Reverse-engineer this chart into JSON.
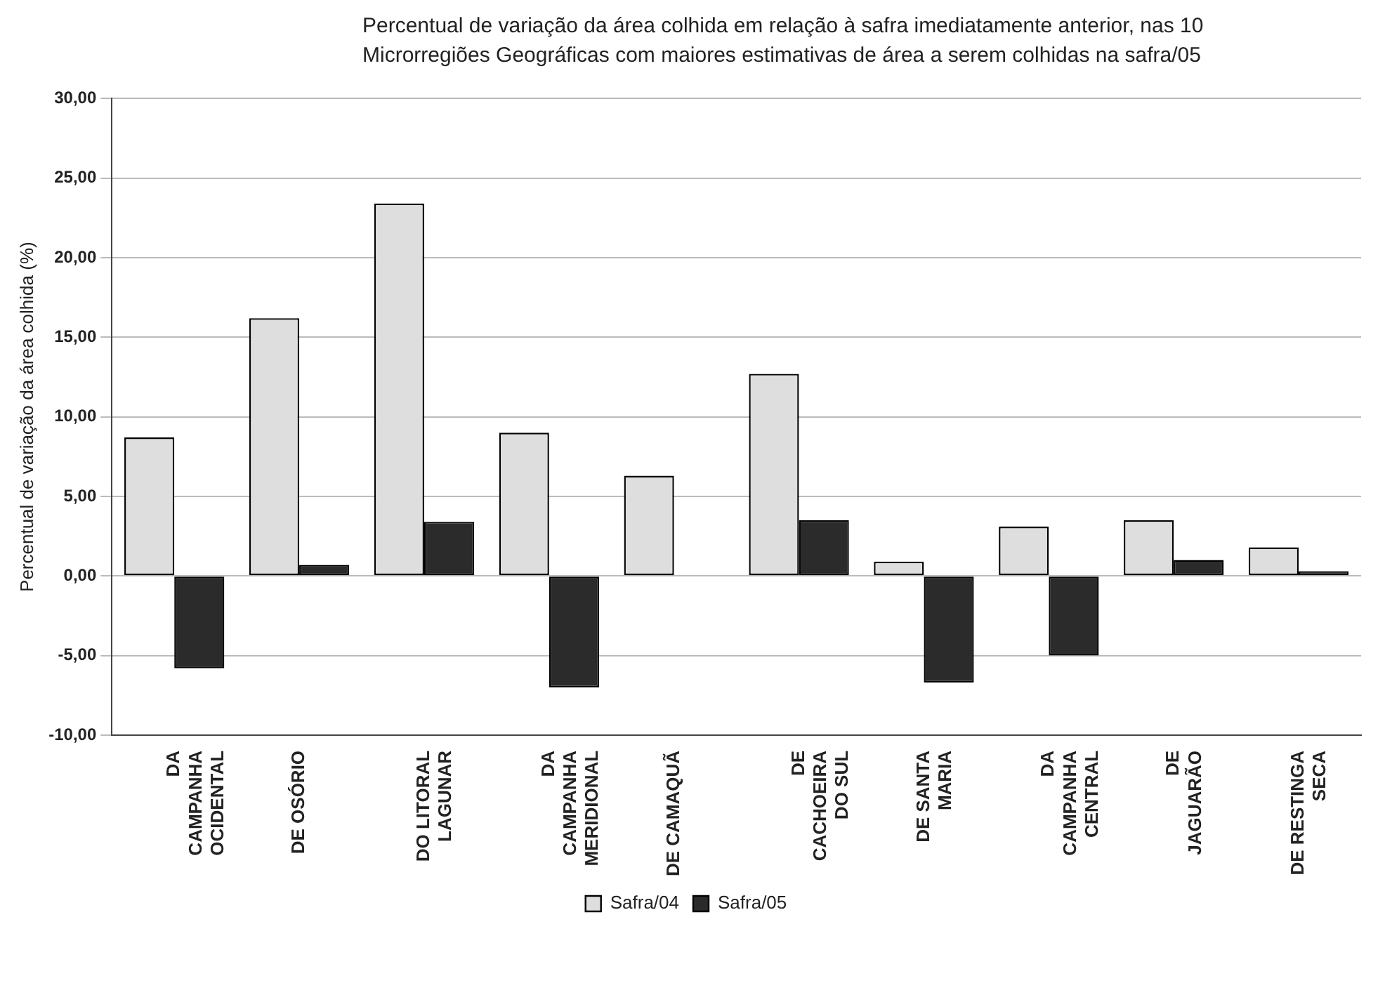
{
  "chart_data": {
    "type": "bar",
    "title": "Percentual de variação da área colhida em relação à safra imediatamente anterior, nas 10 Microrregiões Geográficas com maiores estimativas de área a serem colhidas na safra/05",
    "ylabel": "Percentual de variação da área colhida (%)",
    "categories": [
      "DA\nCAMPANHA\nOCIDENTAL",
      "DE OSÓRIO",
      "DO LITORAL\nLAGUNAR",
      "DA\nCAMPANHA\nMERIDIONAL",
      "DE CAMAQUÃ",
      "DE\nCACHOEIRA\nDO SUL",
      "DE SANTA\nMARIA",
      "DA\nCAMPANHA\nCENTRAL",
      "DE\nJAGUARÃO",
      "DE RESTINGA\nSECA"
    ],
    "series": [
      {
        "name": "Safra/04",
        "color": "#dedede",
        "values": [
          8.7,
          16.2,
          23.4,
          9.0,
          6.3,
          12.7,
          0.9,
          3.1,
          3.5,
          1.8
        ]
      },
      {
        "name": "Safra/05",
        "color": "#2b2b2b",
        "values": [
          -5.8,
          0.7,
          3.4,
          -7.0,
          0,
          3.5,
          -6.7,
          -5.0,
          1.0,
          0.3
        ]
      }
    ],
    "ylim": [
      -10,
      30
    ],
    "yticks": [
      {
        "value": -10,
        "label": "-10,00"
      },
      {
        "value": -5,
        "label": "-5,00"
      },
      {
        "value": 0,
        "label": "0,00"
      },
      {
        "value": 5,
        "label": "5,00"
      },
      {
        "value": 10,
        "label": "10,00"
      },
      {
        "value": 15,
        "label": "15,00"
      },
      {
        "value": 20,
        "label": "20,00"
      },
      {
        "value": 25,
        "label": "25,00"
      },
      {
        "value": 30,
        "label": "30,00"
      }
    ],
    "grid": "y",
    "legend": "bottom"
  }
}
